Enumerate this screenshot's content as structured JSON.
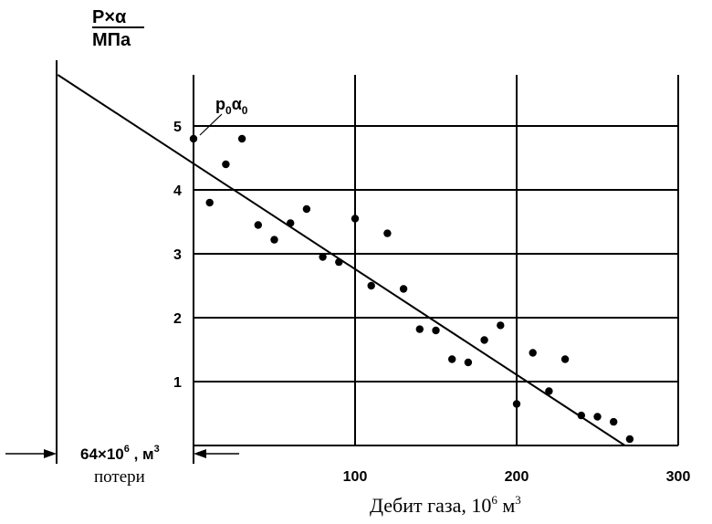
{
  "chart_data": {
    "type": "scatter",
    "ylabel_top": "P×α",
    "ylabel_bottom": "МПа",
    "xlabel_text": "Дебит газа, 10",
    "xlabel_exp": "6",
    "xlabel_unit": " м",
    "xlabel_unit_exp": "3",
    "xlim": [
      0,
      300
    ],
    "ylim": [
      0,
      5.8
    ],
    "extrapolated_x_min": -84,
    "x_ticks": [
      100,
      200,
      300
    ],
    "x_tick_labels": [
      "100",
      "200",
      "300"
    ],
    "y_ticks": [
      1,
      2,
      3,
      4,
      5
    ],
    "y_tick_labels": [
      "1",
      "2",
      "3",
      "4",
      "5"
    ],
    "grid": true,
    "points": [
      {
        "x": 0,
        "y": 4.8
      },
      {
        "x": 10,
        "y": 3.8
      },
      {
        "x": 20,
        "y": 4.4
      },
      {
        "x": 30,
        "y": 4.8
      },
      {
        "x": 40,
        "y": 3.45
      },
      {
        "x": 50,
        "y": 3.22
      },
      {
        "x": 60,
        "y": 3.48
      },
      {
        "x": 70,
        "y": 3.7
      },
      {
        "x": 80,
        "y": 2.95
      },
      {
        "x": 90,
        "y": 2.87
      },
      {
        "x": 100,
        "y": 3.55
      },
      {
        "x": 110,
        "y": 2.5
      },
      {
        "x": 120,
        "y": 3.32
      },
      {
        "x": 130,
        "y": 2.45
      },
      {
        "x": 140,
        "y": 1.82
      },
      {
        "x": 150,
        "y": 1.8
      },
      {
        "x": 160,
        "y": 1.35
      },
      {
        "x": 170,
        "y": 1.3
      },
      {
        "x": 180,
        "y": 1.65
      },
      {
        "x": 190,
        "y": 1.88
      },
      {
        "x": 200,
        "y": 0.65
      },
      {
        "x": 210,
        "y": 1.45
      },
      {
        "x": 220,
        "y": 0.85
      },
      {
        "x": 230,
        "y": 1.35
      },
      {
        "x": 240,
        "y": 0.47
      },
      {
        "x": 250,
        "y": 0.45
      },
      {
        "x": 260,
        "y": 0.37
      },
      {
        "x": 270,
        "y": 0.1
      }
    ],
    "fit_line": [
      {
        "x": -84,
        "y": 5.8
      },
      {
        "x": 267,
        "y": 0
      }
    ],
    "annotation_main": "p",
    "annotation_sub1": "0",
    "annotation_alpha": "α",
    "annotation_sub2": "0",
    "loss_mantissa": "64×10",
    "loss_exp": "6",
    "loss_unit": " , м",
    "loss_unit_exp": "3",
    "loss_label": "потери"
  }
}
